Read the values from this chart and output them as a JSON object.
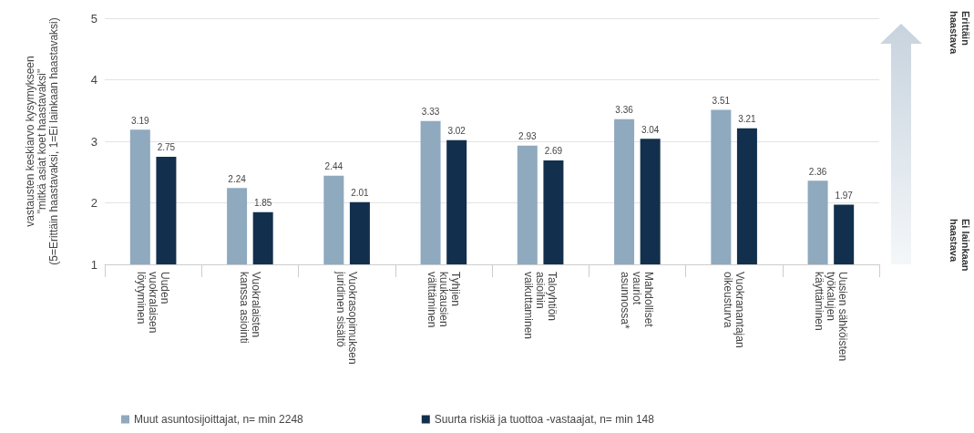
{
  "chart_data": {
    "type": "bar",
    "ylabel": "vastausten keskiarvo kysymykseen\n\"mitkä asiat koet haastavaksi\"\n(5=Erittäin haastavaksi, 1=Ei lainkaan haastavaksi)",
    "categories": [
      "Uuden\nvuokralaisen\nlöytyminen",
      "Vuokralaisten\nkanssa asiointi",
      "Vuokrasopimuksen\njuridinen sisältö",
      "Tyhjien\nkuukausien\nvälttäminen",
      "Taloyhtiön\nasioihin\nvaikuttaminen",
      "Mahdolliset\nvauriot\nasunnossa*",
      "Vuokranantajan\noikeusturva",
      "Uusien sähköisten\ntyökalujen\nkäyttäminen"
    ],
    "series": [
      {
        "name": "Muut asuntosijoittajat, n= min 2248",
        "color": "#8fa9bf",
        "values": [
          3.19,
          2.24,
          2.44,
          3.33,
          2.93,
          3.36,
          3.51,
          2.36
        ]
      },
      {
        "name": "Suurta riskiä ja tuottoa -vastaajat, n= min 148",
        "color": "#12304d",
        "values": [
          2.75,
          1.85,
          2.01,
          3.02,
          2.69,
          3.04,
          3.21,
          1.97
        ]
      }
    ],
    "ylim": [
      1,
      5
    ],
    "yticks": [
      1,
      2,
      3,
      4,
      5
    ],
    "grid": "y",
    "legend": "bottom",
    "data_labels": true,
    "annotations": [
      "Erittäin\nhaastava",
      "Ei lainkaan\nhaastava"
    ]
  }
}
